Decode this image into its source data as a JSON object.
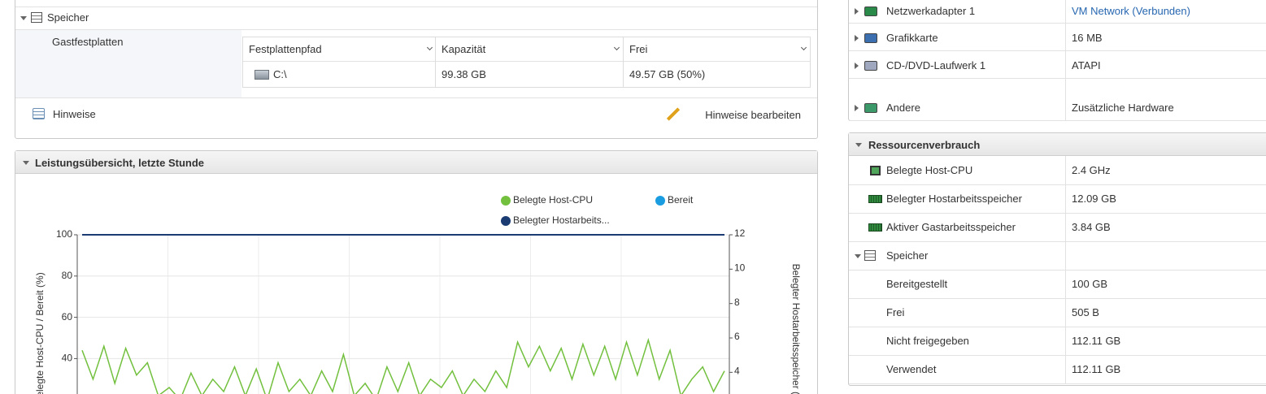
{
  "storage": {
    "section": "Speicher",
    "disks_label": "Gastfestplatten",
    "columns": [
      "Festplattenpfad",
      "Kapazität",
      "Frei"
    ],
    "rows": [
      [
        "C:\\",
        "99.38 GB",
        "49.57 GB (50%)"
      ]
    ],
    "notes_label": "Hinweise",
    "notes_action": "Hinweise bearbeiten"
  },
  "performance": {
    "title": "Leistungsübersicht, letzte Stunde"
  },
  "chart_data": {
    "type": "line",
    "ylabel": "Belegte Host-CPU / Bereit (%)",
    "y2label": "Belegter Hostarbeitsspeicher (GB)",
    "ylim": [
      0,
      100
    ],
    "yticks": [
      100,
      80,
      60,
      40
    ],
    "y2lim": [
      0,
      12
    ],
    "y2ticks": [
      12,
      10,
      8,
      6,
      4
    ],
    "grid": true,
    "series": [
      {
        "name": "Belegte Host-CPU",
        "color": "#72c03e",
        "values": [
          44,
          30,
          46,
          28,
          45,
          32,
          38,
          22,
          26,
          20,
          33,
          22,
          30,
          24,
          36,
          22,
          35,
          20,
          38,
          24,
          30,
          22,
          34,
          24,
          42,
          22,
          28,
          20,
          36,
          24,
          38,
          22,
          30,
          26,
          34,
          22,
          30,
          24,
          34,
          26,
          48,
          36,
          46,
          34,
          45,
          30,
          47,
          32,
          46,
          30,
          48,
          32,
          49,
          30,
          44,
          22,
          30,
          36,
          24,
          34
        ]
      },
      {
        "name": "Bereit",
        "color": "#1a9ce0"
      },
      {
        "name": "Belegter Hostarbeits...",
        "color": "#1b3b73",
        "axis": "y2",
        "values": [
          12,
          12,
          12,
          12,
          12,
          12,
          12,
          12,
          12,
          12,
          12,
          12,
          12,
          12,
          12,
          12,
          12,
          12,
          12,
          12,
          12,
          12,
          12,
          12,
          12,
          12,
          12,
          12,
          12,
          12,
          12,
          12,
          12,
          12,
          12,
          12,
          12,
          12,
          12,
          12,
          12,
          12,
          12,
          12,
          12,
          12,
          12,
          12,
          12,
          12,
          12,
          12,
          12,
          12,
          12,
          12,
          12,
          12,
          12,
          12
        ]
      }
    ]
  },
  "hardware": {
    "rows": [
      [
        "Netzwerkadapter 1",
        "VM Network (Verbunden)"
      ],
      [
        "Grafikkarte",
        "16 MB"
      ],
      [
        "CD-/DVD-Laufwerk 1",
        "ATAPI"
      ],
      [
        "Andere",
        "Zusätzliche Hardware"
      ]
    ]
  },
  "resources": {
    "title": "Ressourcenverbrauch",
    "rows": [
      [
        "Belegte Host-CPU",
        "2.4 GHz"
      ],
      [
        "Belegter Hostarbeitsspeicher",
        "12.09 GB"
      ],
      [
        "Aktiver Gastarbeitsspeicher",
        "3.84 GB"
      ]
    ],
    "storage_label": "Speicher",
    "storage_rows": [
      [
        "Bereitgestellt",
        "100 GB"
      ],
      [
        "Frei",
        "505 B"
      ],
      [
        "Nicht freigegeben",
        "112.11 GB"
      ],
      [
        "Verwendet",
        "112.11 GB"
      ]
    ]
  }
}
